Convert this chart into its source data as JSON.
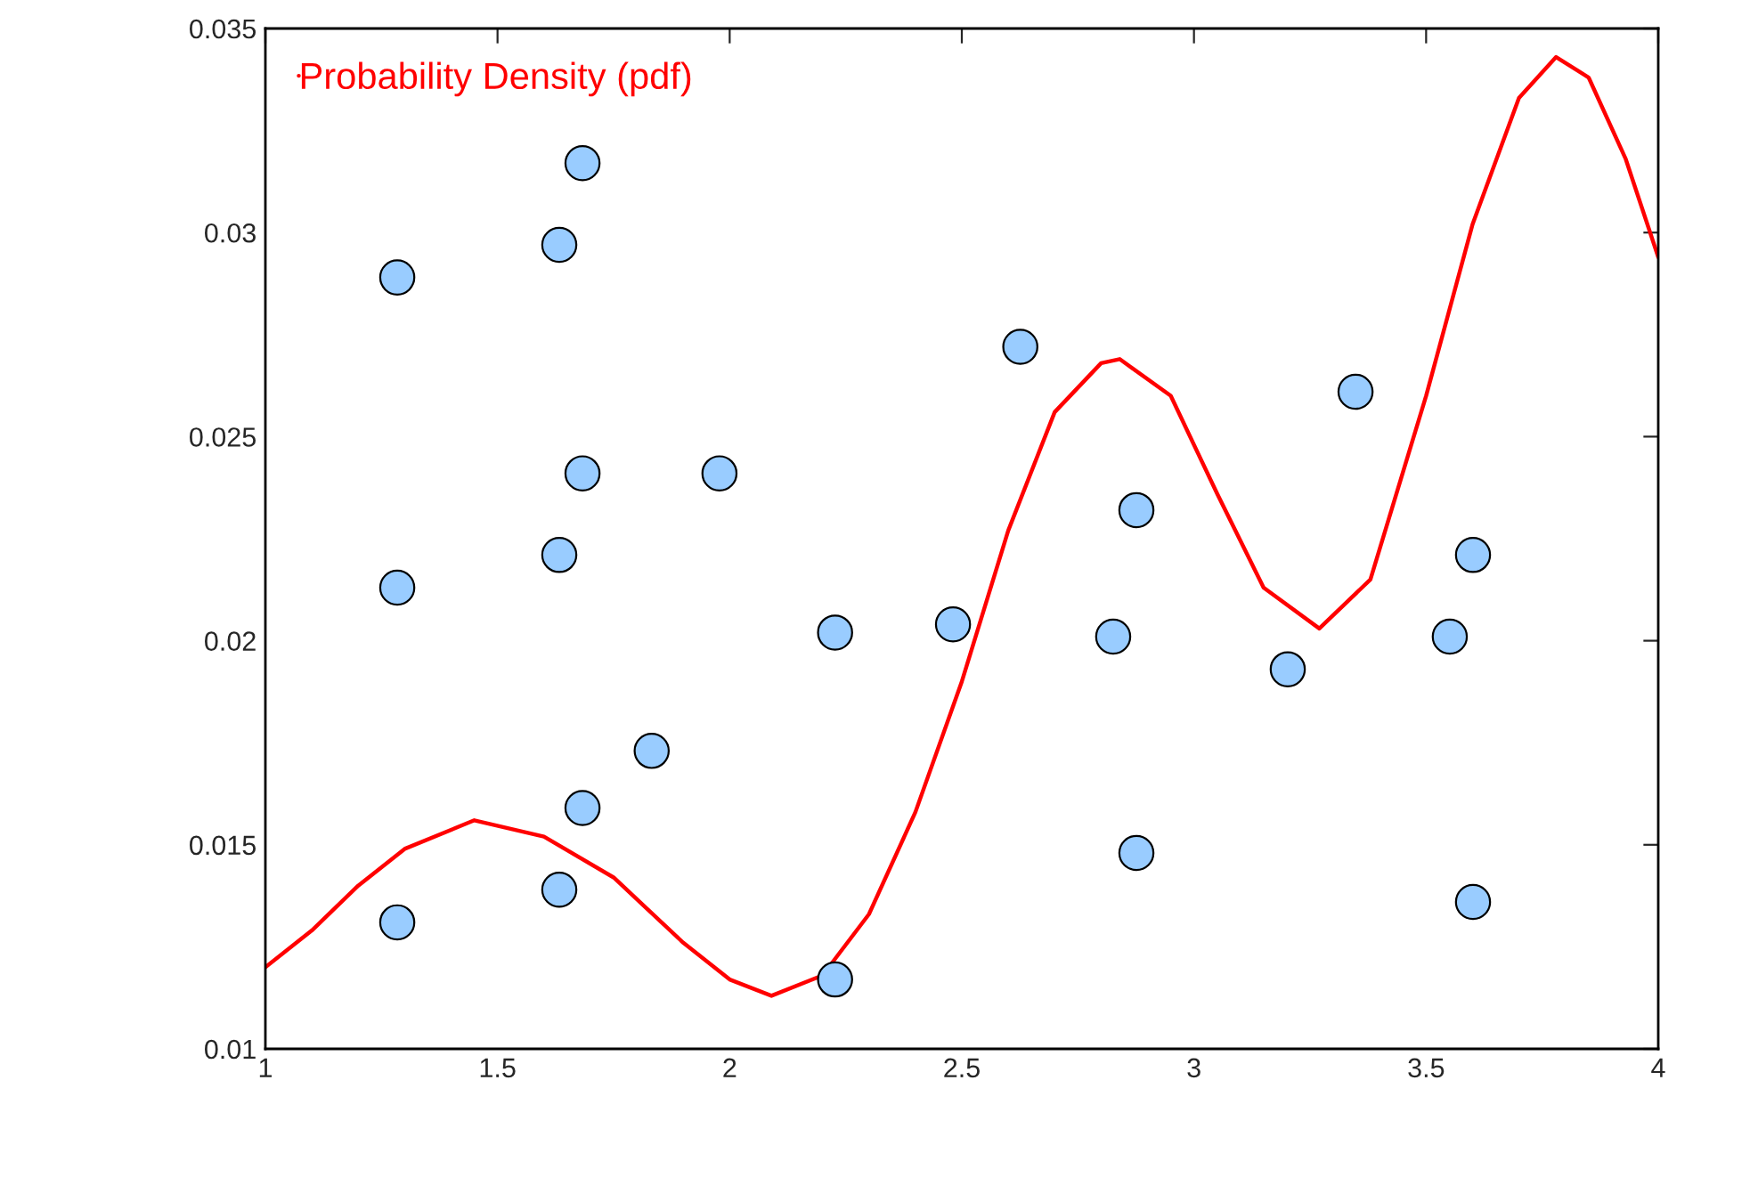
{
  "chart_data": {
    "type": "scatter",
    "xlim": [
      1,
      4
    ],
    "ylim": [
      0.01,
      0.035
    ],
    "xticks": [
      1,
      1.5,
      2,
      2.5,
      3,
      3.5,
      4
    ],
    "yticks": [
      0.01,
      0.015,
      0.02,
      0.025,
      0.03,
      0.035
    ],
    "grid": false,
    "legend": "top left",
    "series": [
      {
        "marker": "circle",
        "color": "#99ccff",
        "x": [
          1.284,
          1.284,
          1.284,
          1.633,
          1.683,
          1.633,
          1.683,
          1.683,
          1.633,
          1.832,
          1.978,
          2.227,
          2.227,
          2.481,
          2.626,
          2.826,
          2.876,
          2.876,
          3.202,
          3.348,
          3.551,
          3.601,
          3.601
        ],
        "values": [
          0.0289,
          0.0213,
          0.0131,
          0.0297,
          0.0317,
          0.0221,
          0.0241,
          0.0159,
          0.0139,
          0.0173,
          0.0241,
          0.0202,
          0.0117,
          0.0204,
          0.0272,
          0.0201,
          0.0232,
          0.0148,
          0.0193,
          0.0261,
          0.0201,
          0.0221,
          0.0136
        ]
      },
      {
        "type": "line",
        "name": "Probability Density (pdf)",
        "color": "#ff0000",
        "line_style": "solid",
        "marker": "none",
        "x": [
          1,
          1.1,
          1.2,
          1.3,
          1.45,
          1.6,
          1.75,
          1.9,
          2.0,
          2.09,
          2.2,
          2.3,
          2.4,
          2.5,
          2.6,
          2.7,
          2.8,
          2.84,
          2.95,
          3.05,
          3.15,
          3.27,
          3.38,
          3.5,
          3.6,
          3.7,
          3.78,
          3.85,
          3.93,
          4.0
        ],
        "values": [
          0.012,
          0.0129,
          0.014,
          0.0149,
          0.0156,
          0.0152,
          0.0142,
          0.0126,
          0.0117,
          0.0113,
          0.0118,
          0.0133,
          0.0158,
          0.019,
          0.0227,
          0.0256,
          0.0268,
          0.0269,
          0.026,
          0.0236,
          0.0213,
          0.0203,
          0.0215,
          0.026,
          0.0302,
          0.0333,
          0.0343,
          0.0338,
          0.0318,
          0.0294
        ]
      }
    ]
  }
}
